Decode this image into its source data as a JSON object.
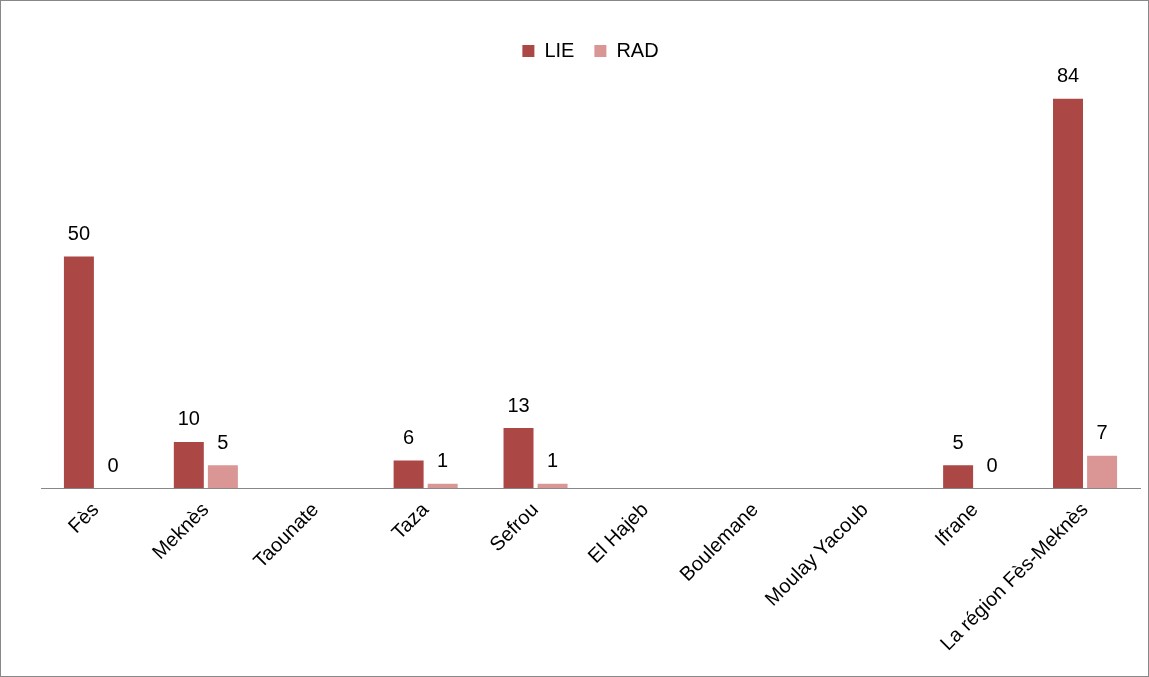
{
  "chart_data": {
    "type": "bar",
    "categories": [
      "Fès",
      "Meknès",
      "Taounate",
      "Taza",
      "Sefrou",
      "El Hajeb",
      "Boulemane",
      "Moulay Yacoub",
      "Ifrane",
      "La région Fès-Meknès"
    ],
    "series": [
      {
        "name": "LIE",
        "color": "#ab4744",
        "values": [
          50,
          10,
          null,
          6,
          13,
          null,
          null,
          null,
          5,
          84
        ]
      },
      {
        "name": "RAD",
        "color": "#d99694",
        "values": [
          0,
          5,
          null,
          1,
          1,
          null,
          null,
          null,
          0,
          7
        ]
      }
    ],
    "data_labels": true,
    "legend": "top",
    "grid": false
  }
}
